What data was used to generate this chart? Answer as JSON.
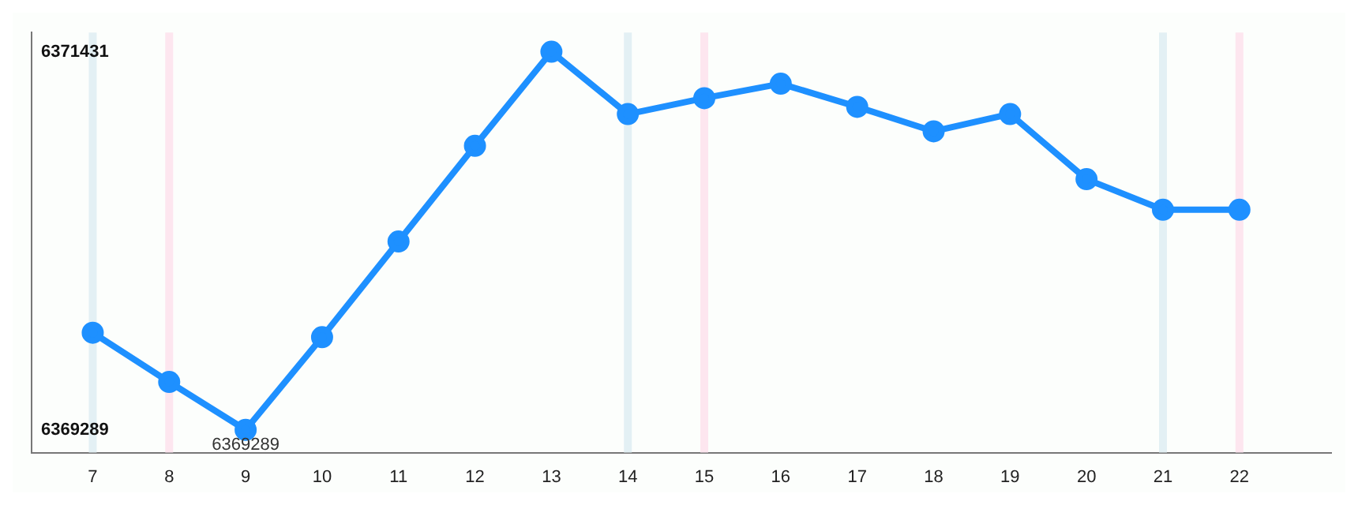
{
  "chart_data": {
    "type": "line",
    "x": [
      7,
      8,
      9,
      10,
      11,
      12,
      13,
      14,
      15,
      16,
      17,
      18,
      19,
      20,
      21,
      22
    ],
    "series": [
      {
        "color": "#1e90ff",
        "values": [
          6369839,
          6369560,
          6369289,
          6369814,
          6370356,
          6370898,
          6371431,
          6371078,
          6371168,
          6371250,
          6371119,
          6370980,
          6371078,
          6370709,
          6370536,
          6370536
        ],
        "value_labels": [
          null,
          null,
          "6369289",
          null,
          null,
          null,
          null,
          null,
          null,
          null,
          null,
          null,
          null,
          null,
          null,
          null
        ]
      }
    ],
    "xlim": [
      6.2,
      23.2
    ],
    "xticks": [
      7,
      8,
      9,
      10,
      11,
      12,
      13,
      14,
      15,
      16,
      17,
      18,
      19,
      20,
      21,
      22
    ],
    "ylim": [
      6369160,
      6371540
    ],
    "yticks": [
      6369289,
      6371431
    ],
    "ref_lines": [
      {
        "axis": "x",
        "value": 7,
        "color": "#e3f0f4"
      },
      {
        "axis": "x",
        "value": 14,
        "color": "#e3f0f4"
      },
      {
        "axis": "x",
        "value": 21,
        "color": "#e3f0f4"
      },
      {
        "axis": "x",
        "value": 8,
        "color": "#fde6ef"
      },
      {
        "axis": "x",
        "value": 15,
        "color": "#fde6ef"
      },
      {
        "axis": "x",
        "value": 22,
        "color": "#fde6ef"
      }
    ],
    "grid": false,
    "legend": false,
    "marker": "circle",
    "line_style": "solid"
  }
}
